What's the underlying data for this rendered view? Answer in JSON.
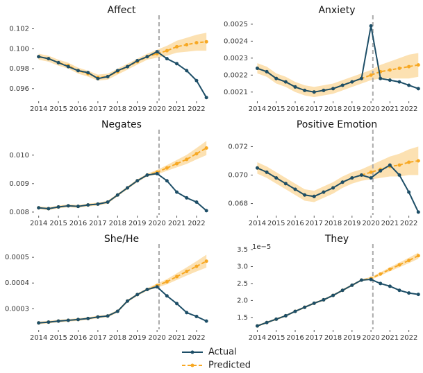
{
  "chart_data": [
    {
      "type": "line",
      "title": "Affect",
      "x": [
        2014,
        2014.5,
        2015,
        2015.5,
        2016,
        2016.5,
        2017,
        2017.5,
        2018,
        2018.5,
        2019,
        2019.5,
        2020,
        2020.5,
        2021,
        2021.5,
        2022,
        2022.5
      ],
      "xlim": [
        2013.8,
        2022.6
      ],
      "xticks": [
        2014,
        2015,
        2016,
        2017,
        2018,
        2019,
        2020,
        2021,
        2022
      ],
      "ylim": [
        0.0948,
        0.1028
      ],
      "yticks": [
        0.096,
        0.098,
        {
          "value": 0.1,
          "label": "0.100"
        },
        0.102
      ],
      "vline": 2020.1,
      "series": [
        {
          "name": "Actual",
          "color": "#1d4e67",
          "values": [
            0.0992,
            0.099,
            0.0986,
            0.0982,
            0.0978,
            0.0976,
            0.097,
            0.0972,
            0.0978,
            0.0982,
            0.0988,
            0.0992,
            0.0997,
            0.099,
            0.0985,
            0.0978,
            0.0968,
            0.0951
          ]
        },
        {
          "name": "Predicted",
          "color": "#f7a823",
          "values": [
            0.0992,
            0.099,
            0.0986,
            0.0983,
            0.0978,
            0.0975,
            0.0971,
            0.0972,
            0.0977,
            0.0982,
            0.0987,
            0.0992,
            0.0995,
            0.0998,
            0.1002,
            0.1004,
            0.1006,
            0.1007
          ],
          "lower": [
            0.0989,
            0.0987,
            0.0983,
            0.098,
            0.0975,
            0.0972,
            0.0968,
            0.0969,
            0.0974,
            0.0979,
            0.0984,
            0.0989,
            0.0991,
            0.0993,
            0.0996,
            0.0997,
            0.0998,
            0.0998
          ],
          "upper": [
            0.0995,
            0.0993,
            0.0989,
            0.0986,
            0.0981,
            0.0978,
            0.0974,
            0.0975,
            0.098,
            0.0985,
            0.099,
            0.0995,
            0.0999,
            0.1003,
            0.1008,
            0.1011,
            0.1014,
            0.1016
          ]
        }
      ]
    },
    {
      "type": "line",
      "title": "Anxiety",
      "x": [
        2014,
        2014.5,
        2015,
        2015.5,
        2016,
        2016.5,
        2017,
        2017.5,
        2018,
        2018.5,
        2019,
        2019.5,
        2020,
        2020.5,
        2021,
        2021.5,
        2022,
        2022.5
      ],
      "xlim": [
        2013.8,
        2022.6
      ],
      "xticks": [
        2014,
        2015,
        2016,
        2017,
        2018,
        2019,
        2020,
        2021,
        2022
      ],
      "ylim": [
        0.00205,
        0.00252
      ],
      "yticks": [
        0.0021,
        0.0022,
        0.0023,
        0.0024,
        0.0025
      ],
      "vline": 2020.1,
      "series": [
        {
          "name": "Actual",
          "color": "#1d4e67",
          "values": [
            0.00224,
            0.00222,
            0.00218,
            0.00216,
            0.00213,
            0.00211,
            0.0021,
            0.00211,
            0.00212,
            0.00214,
            0.00216,
            0.00218,
            0.00249,
            0.00218,
            0.00217,
            0.00216,
            0.00214,
            0.00212
          ]
        },
        {
          "name": "Predicted",
          "color": "#f7a823",
          "values": [
            0.00224,
            0.00222,
            0.00218,
            0.00216,
            0.00213,
            0.00211,
            0.0021,
            0.00211,
            0.00212,
            0.00214,
            0.00216,
            0.00218,
            0.0022,
            0.00222,
            0.00223,
            0.00224,
            0.00225,
            0.00226
          ],
          "lower": [
            0.00221,
            0.00219,
            0.00215,
            0.00213,
            0.0021,
            0.00208,
            0.00207,
            0.00208,
            0.00209,
            0.00211,
            0.00213,
            0.00215,
            0.00217,
            0.00218,
            0.00218,
            0.00218,
            0.00218,
            0.00219
          ],
          "upper": [
            0.00227,
            0.00225,
            0.00221,
            0.00219,
            0.00216,
            0.00214,
            0.00213,
            0.00214,
            0.00215,
            0.00217,
            0.00219,
            0.00221,
            0.00223,
            0.00226,
            0.00228,
            0.0023,
            0.00232,
            0.00233
          ]
        }
      ]
    },
    {
      "type": "line",
      "title": "Negates",
      "x": [
        2014,
        2014.5,
        2015,
        2015.5,
        2016,
        2016.5,
        2017,
        2017.5,
        2018,
        2018.5,
        2019,
        2019.5,
        2020,
        2020.5,
        2021,
        2021.5,
        2022,
        2022.5
      ],
      "xlim": [
        2013.8,
        2022.6
      ],
      "xticks": [
        2014,
        2015,
        2016,
        2017,
        2018,
        2019,
        2020,
        2021,
        2022
      ],
      "ylim": [
        0.0079,
        0.0107
      ],
      "yticks": [
        0.008,
        0.009,
        {
          "value": 0.01,
          "label": "0.010"
        }
      ],
      "vline": 2020.1,
      "series": [
        {
          "name": "Actual",
          "color": "#1d4e67",
          "values": [
            0.00815,
            0.00812,
            0.00818,
            0.00822,
            0.0082,
            0.00825,
            0.00828,
            0.00835,
            0.0086,
            0.00885,
            0.0091,
            0.0093,
            0.00935,
            0.0091,
            0.0087,
            0.0085,
            0.00835,
            0.00805
          ]
        },
        {
          "name": "Predicted",
          "color": "#f7a823",
          "values": [
            0.00815,
            0.00812,
            0.00818,
            0.00822,
            0.0082,
            0.00825,
            0.00828,
            0.00835,
            0.0086,
            0.00885,
            0.0091,
            0.0093,
            0.0094,
            0.00955,
            0.0097,
            0.00985,
            0.01005,
            0.01025
          ],
          "lower": [
            0.0081,
            0.00807,
            0.00813,
            0.00817,
            0.00815,
            0.0082,
            0.00823,
            0.0083,
            0.00855,
            0.0088,
            0.00905,
            0.00925,
            0.00932,
            0.00945,
            0.00957,
            0.00969,
            0.00985,
            0.01
          ],
          "upper": [
            0.0082,
            0.00817,
            0.00823,
            0.00827,
            0.00825,
            0.0083,
            0.00833,
            0.0084,
            0.00865,
            0.0089,
            0.00915,
            0.00935,
            0.00948,
            0.00965,
            0.00983,
            0.01001,
            0.01025,
            0.0105
          ]
        }
      ]
    },
    {
      "type": "line",
      "title": "Positive Emotion",
      "x": [
        2014,
        2014.5,
        2015,
        2015.5,
        2016,
        2016.5,
        2017,
        2017.5,
        2018,
        2018.5,
        2019,
        2019.5,
        2020,
        2020.5,
        2021,
        2021.5,
        2022,
        2022.5
      ],
      "xlim": [
        2013.8,
        2022.6
      ],
      "xticks": [
        2014,
        2015,
        2016,
        2017,
        2018,
        2019,
        2020,
        2021,
        2022
      ],
      "ylim": [
        0.0672,
        0.0728
      ],
      "yticks": [
        0.068,
        {
          "value": 0.07,
          "label": "0.070"
        },
        0.072
      ],
      "vline": 2020.1,
      "series": [
        {
          "name": "Actual",
          "color": "#1d4e67",
          "values": [
            0.0705,
            0.0702,
            0.0698,
            0.0694,
            0.069,
            0.0686,
            0.0685,
            0.0688,
            0.0691,
            0.0695,
            0.0698,
            0.07,
            0.0698,
            0.0703,
            0.0707,
            0.07,
            0.0688,
            0.0674
          ]
        },
        {
          "name": "Predicted",
          "color": "#f7a823",
          "values": [
            0.0705,
            0.0702,
            0.0698,
            0.0694,
            0.069,
            0.0686,
            0.0685,
            0.0688,
            0.0691,
            0.0695,
            0.0698,
            0.07,
            0.0702,
            0.0704,
            0.0706,
            0.0707,
            0.0709,
            0.071
          ],
          "lower": [
            0.0701,
            0.0698,
            0.0694,
            0.069,
            0.0686,
            0.0682,
            0.0681,
            0.0684,
            0.0687,
            0.0691,
            0.0694,
            0.0696,
            0.0697,
            0.0698,
            0.0699,
            0.0699,
            0.07,
            0.07
          ],
          "upper": [
            0.0709,
            0.0706,
            0.0702,
            0.0698,
            0.0694,
            0.069,
            0.0689,
            0.0692,
            0.0695,
            0.0699,
            0.0702,
            0.0704,
            0.0707,
            0.071,
            0.0713,
            0.0715,
            0.0718,
            0.072
          ]
        }
      ]
    },
    {
      "type": "line",
      "title": "She/He",
      "x": [
        2014,
        2014.5,
        2015,
        2015.5,
        2016,
        2016.5,
        2017,
        2017.5,
        2018,
        2018.5,
        2019,
        2019.5,
        2020,
        2020.5,
        2021,
        2021.5,
        2022,
        2022.5
      ],
      "xlim": [
        2013.8,
        2022.6
      ],
      "xticks": [
        2014,
        2015,
        2016,
        2017,
        2018,
        2019,
        2020,
        2021,
        2022
      ],
      "ylim": [
        0.00022,
        0.00053
      ],
      "yticks": [
        0.0003,
        0.0004,
        0.0005
      ],
      "vline": 2020.1,
      "series": [
        {
          "name": "Actual",
          "color": "#1d4e67",
          "values": [
            0.000245,
            0.000248,
            0.000252,
            0.000255,
            0.000258,
            0.000262,
            0.000268,
            0.000272,
            0.00029,
            0.00033,
            0.000355,
            0.000375,
            0.000385,
            0.00035,
            0.00032,
            0.000285,
            0.00027,
            0.000252
          ]
        },
        {
          "name": "Predicted",
          "color": "#f7a823",
          "values": [
            0.000245,
            0.000248,
            0.000252,
            0.000255,
            0.000258,
            0.000262,
            0.000268,
            0.000272,
            0.00029,
            0.00033,
            0.000355,
            0.000375,
            0.00039,
            0.000405,
            0.000425,
            0.000445,
            0.000465,
            0.000485
          ],
          "lower": [
            0.00024,
            0.000243,
            0.000247,
            0.00025,
            0.000253,
            0.000257,
            0.000263,
            0.000267,
            0.000285,
            0.000325,
            0.00035,
            0.00037,
            0.000382,
            0.000395,
            0.000412,
            0.000429,
            0.000445,
            0.00046
          ],
          "upper": [
            0.00025,
            0.000253,
            0.000257,
            0.00026,
            0.000263,
            0.000267,
            0.000273,
            0.000277,
            0.000295,
            0.000335,
            0.00036,
            0.00038,
            0.000398,
            0.000415,
            0.000438,
            0.000461,
            0.000485,
            0.00051
          ]
        }
      ]
    },
    {
      "type": "line",
      "title": "They",
      "offset_label": "1e−5",
      "x": [
        2014,
        2014.5,
        2015,
        2015.5,
        2016,
        2016.5,
        2017,
        2017.5,
        2018,
        2018.5,
        2019,
        2019.5,
        2020,
        2020.5,
        2021,
        2021.5,
        2022,
        2022.5
      ],
      "xlim": [
        2013.8,
        2022.6
      ],
      "xticks": [
        2014,
        2015,
        2016,
        2017,
        2018,
        2019,
        2020,
        2021,
        2022
      ],
      "ylim": [
        1.15,
        3.5
      ],
      "yticks": [
        1.5,
        {
          "value": 2,
          "label": "2.0"
        },
        2.5,
        {
          "value": 3,
          "label": "3.0"
        },
        3.5
      ],
      "vline": 2020.1,
      "series": [
        {
          "name": "Actual",
          "color": "#1d4e67",
          "values": [
            1.25,
            1.35,
            1.45,
            1.55,
            1.68,
            1.8,
            1.92,
            2.02,
            2.15,
            2.3,
            2.45,
            2.6,
            2.62,
            2.5,
            2.42,
            2.3,
            2.22,
            2.18
          ]
        },
        {
          "name": "Predicted",
          "color": "#f7a823",
          "values": [
            1.25,
            1.35,
            1.45,
            1.55,
            1.68,
            1.8,
            1.92,
            2.02,
            2.15,
            2.3,
            2.45,
            2.6,
            2.65,
            2.78,
            2.92,
            3.05,
            3.18,
            3.32
          ],
          "lower": [
            1.22,
            1.32,
            1.42,
            1.52,
            1.65,
            1.77,
            1.89,
            1.99,
            2.12,
            2.27,
            2.42,
            2.57,
            2.61,
            2.73,
            2.86,
            2.98,
            3.1,
            3.23
          ],
          "upper": [
            1.28,
            1.38,
            1.48,
            1.58,
            1.71,
            1.83,
            1.95,
            2.05,
            2.18,
            2.33,
            2.48,
            2.63,
            2.69,
            2.83,
            2.98,
            3.12,
            3.26,
            3.41
          ]
        }
      ]
    }
  ]
}
